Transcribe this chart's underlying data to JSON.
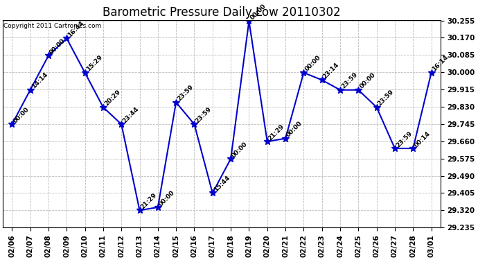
{
  "title": "Barometric Pressure Daily Low 20110302",
  "copyright": "Copyright 2011 Cartronics.com",
  "x_labels": [
    "02/06",
    "02/07",
    "02/08",
    "02/09",
    "02/10",
    "02/11",
    "02/12",
    "02/13",
    "02/14",
    "02/15",
    "02/16",
    "02/17",
    "02/18",
    "02/19",
    "02/20",
    "02/21",
    "02/22",
    "02/23",
    "02/24",
    "02/25",
    "02/26",
    "02/27",
    "02/28",
    "03/01"
  ],
  "y_values": [
    29.744,
    29.913,
    30.082,
    30.167,
    29.998,
    29.828,
    29.744,
    29.32,
    29.335,
    29.852,
    29.744,
    29.405,
    29.574,
    30.252,
    29.659,
    29.674,
    29.998,
    29.962,
    29.913,
    29.913,
    29.828,
    29.625,
    29.625,
    29.998
  ],
  "point_labels": [
    "00:00",
    "14:14",
    "00:00",
    "16:44",
    "15:29",
    "20:29",
    "23:44",
    "21:29",
    "00:00",
    "23:59",
    "23:59",
    "15:44",
    "00:00",
    "00:00",
    "21:29",
    "00:00",
    "00:00",
    "23:14",
    "23:59",
    "00:00",
    "23:59",
    "23:59",
    "00:14",
    "16:14"
  ],
  "ylim_min": 29.235,
  "ylim_max": 30.252,
  "ytick_step": 0.085,
  "line_color": "#0000cc",
  "marker_color": "#0000cc",
  "bg_color": "#ffffff",
  "grid_color": "#bbbbbb",
  "title_fontsize": 12,
  "label_fontsize": 6.5,
  "tick_fontsize": 7.5,
  "copyright_fontsize": 6.5
}
